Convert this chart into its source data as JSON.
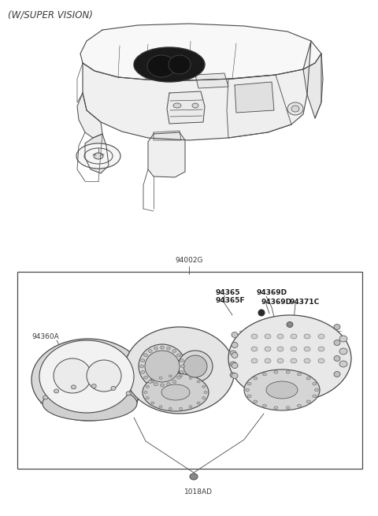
{
  "title": "(W/SUPER VISION)",
  "bg_color": "#ffffff",
  "line_color": "#4a4a4a",
  "text_color": "#3a3a3a",
  "bold_text_color": "#1a1a1a",
  "part_label_94002G": "94002G",
  "part_label_94360A": "94360A",
  "part_label_94365": "94365",
  "part_label_94365F": "94365F",
  "part_label_94369D_1": "94369D",
  "part_label_94369D_2": "94369D",
  "part_label_94371C": "94371C",
  "part_label_1018AD": "1018AD",
  "title_fontsize": 8.5,
  "label_fontsize": 6.5,
  "label_fontsize_bold": 6.5
}
